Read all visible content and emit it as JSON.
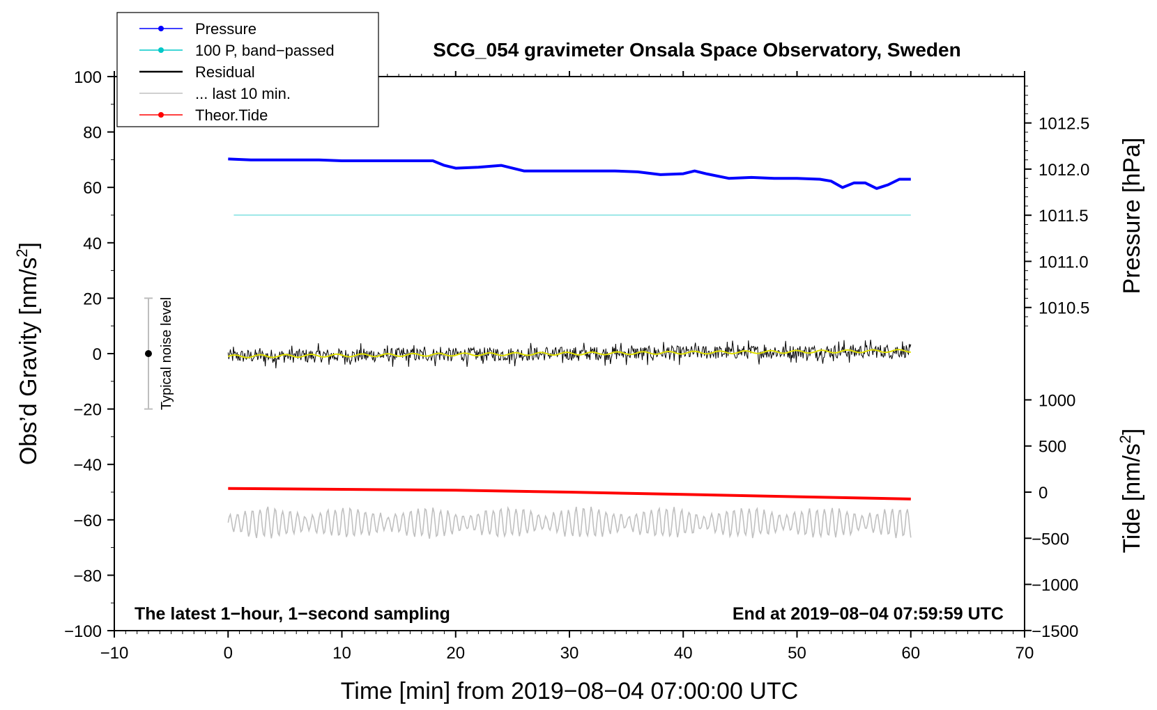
{
  "chart_data": {
    "type": "line",
    "title": "SCG_054 gravimeter Onsala Space Observatory, Sweden",
    "xlabel": "Time [min] from 2019−08−04 07:00:00 UTC",
    "ylabel_left": "Obs’d Gravity [nm/s",
    "ylabel_left_sup": "2",
    "ylabel_left_end": "]",
    "ylabel_right_pressure": "Pressure [hPa]",
    "ylabel_right_tide": "Tide [nm/s",
    "ylabel_right_tide_sup": "2",
    "ylabel_right_tide_end": "]",
    "xlim": [
      -10,
      70
    ],
    "ylim": [
      -100,
      100
    ],
    "x_ticks": [
      -10,
      0,
      10,
      20,
      30,
      40,
      50,
      60,
      70
    ],
    "x_tick_labels": [
      "−10",
      "0",
      "10",
      "20",
      "30",
      "40",
      "50",
      "60",
      "70"
    ],
    "y_ticks": [
      100,
      80,
      60,
      40,
      20,
      0,
      -20,
      -40,
      -60,
      -80,
      -100
    ],
    "y_tick_labels": [
      "100",
      "80",
      "60",
      "40",
      "20",
      "0",
      "−20",
      "−40",
      "−60",
      "−80",
      "−100"
    ],
    "pressure_axis": {
      "ticks": [
        1010.5,
        1011.0,
        1011.5,
        1012.0,
        1012.5
      ],
      "tick_labels": [
        "1010.5",
        "1011.0",
        "1011.5",
        "1012.0",
        "1012.5"
      ],
      "gravity_equiv_at_1011": 33.3,
      "gravity_per_hpa": 33.3
    },
    "tide_axis": {
      "ticks": [
        1000,
        500,
        0,
        -500,
        -1000,
        -1500
      ],
      "tick_labels": [
        "1000",
        "500",
        "0",
        "−500",
        "−1000",
        "−1500"
      ],
      "gravity_equiv_at_0": -50,
      "gravity_per_unit": 0.0333
    },
    "legend": [
      {
        "label": "Pressure",
        "color": "#0000ff",
        "marker": true
      },
      {
        "label": "100 P, band−passed",
        "color": "#00c8c8",
        "marker": true
      },
      {
        "label": "Residual",
        "color": "#000000",
        "marker": false
      },
      {
        "label": "... last 10 min.",
        "color": "#c0c0c0",
        "marker": false
      },
      {
        "label": "Theor.Tide",
        "color": "#ff0000",
        "marker": true
      }
    ],
    "series": [
      {
        "name": "Pressure",
        "color": "#0000ff",
        "x": [
          0,
          2,
          4,
          6,
          8,
          10,
          12,
          14,
          16,
          18,
          19,
          20,
          22,
          24,
          26,
          28,
          30,
          32,
          34,
          36,
          38,
          40,
          41,
          42,
          44,
          46,
          48,
          50,
          52,
          53,
          54,
          55,
          56,
          57,
          58,
          59,
          60
        ],
        "y": [
          1012.11,
          1012.1,
          1012.1,
          1012.1,
          1012.1,
          1012.09,
          1012.09,
          1012.09,
          1012.09,
          1012.09,
          1012.04,
          1012.01,
          1012.02,
          1012.04,
          1011.98,
          1011.98,
          1011.98,
          1011.98,
          1011.98,
          1011.97,
          1011.94,
          1011.95,
          1011.98,
          1011.95,
          1011.9,
          1011.91,
          1011.9,
          1011.9,
          1011.89,
          1011.87,
          1011.8,
          1011.85,
          1011.85,
          1011.79,
          1011.83,
          1011.89,
          1011.89
        ]
      },
      {
        "name": "100 P, band−passed",
        "color": "#00c8c8",
        "x": [
          0.5,
          60
        ],
        "y": [
          50,
          50
        ]
      },
      {
        "name": "Residual",
        "color": "#000000",
        "smooth_color": "#e0e000",
        "x": [
          0,
          10,
          20,
          30,
          40,
          50,
          60
        ],
        "y": [
          -1,
          -1,
          -1,
          0,
          0,
          1,
          1
        ]
      },
      {
        "name": "... last 10 min.",
        "color": "#c0c0c0",
        "x": [
          0,
          60
        ],
        "y": [
          -61,
          -61
        ]
      },
      {
        "name": "Theor.Tide",
        "color": "#ff0000",
        "x": [
          0,
          10,
          20,
          30,
          40,
          50,
          60
        ],
        "y": [
          40,
          30,
          20,
          0,
          -25,
          -50,
          -75
        ]
      }
    ],
    "noise_bar": {
      "label": "Typical noise level",
      "x": -7,
      "y": 0,
      "y_low": -20,
      "y_high": 20
    },
    "annotations": {
      "bottom_left": "The latest 1−hour, 1−second sampling",
      "bottom_right": "End at 2019−08−04 07:59:59 UTC"
    }
  }
}
